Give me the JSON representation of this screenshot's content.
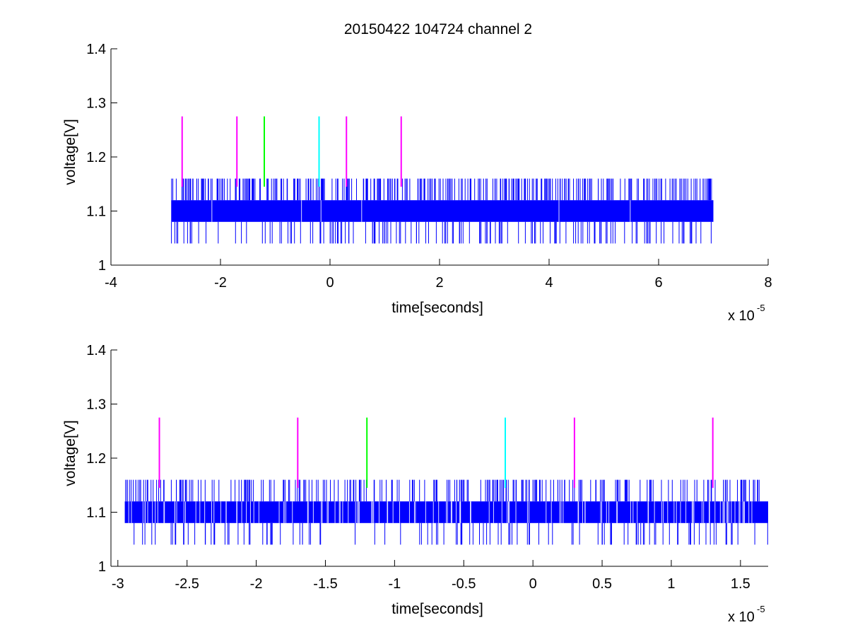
{
  "figure": {
    "title": "20150422 104724 channel 2",
    "background": "#ffffff",
    "trace_color": "#0000ff",
    "marker_colors": {
      "magenta": "#ff00ff",
      "green": "#00ff00",
      "cyan": "#00ffff"
    }
  },
  "chart_data": [
    {
      "type": "line",
      "title": "20150422 104724 channel 2",
      "xlabel": "time[seconds]",
      "ylabel": "voltage[V]",
      "x_scale_label": "x 10",
      "x_scale_exponent": "-5",
      "xlim": [
        -4,
        8
      ],
      "ylim": [
        1,
        1.4
      ],
      "xticks": [
        "-4",
        "-2",
        "0",
        "2",
        "4",
        "6",
        "8"
      ],
      "yticks": [
        "1",
        "1.1",
        "1.2",
        "1.3",
        "1.4"
      ],
      "grid": false,
      "series": [
        {
          "style": "dense-noise",
          "x_range": [
            -2.9,
            7.0
          ],
          "band": [
            1.08,
            1.12
          ],
          "spike_up": 1.16,
          "spike_down": 1.04,
          "color": "#0000ff"
        }
      ],
      "markers": [
        {
          "x": -2.7,
          "y_range": [
            1.145,
            1.275
          ],
          "color": "magenta"
        },
        {
          "x": -1.7,
          "y_range": [
            1.145,
            1.275
          ],
          "color": "magenta"
        },
        {
          "x": -1.2,
          "y_range": [
            1.145,
            1.275
          ],
          "color": "green"
        },
        {
          "x": -0.2,
          "y_range": [
            1.145,
            1.275
          ],
          "color": "cyan"
        },
        {
          "x": 0.3,
          "y_range": [
            1.145,
            1.275
          ],
          "color": "magenta"
        },
        {
          "x": 1.3,
          "y_range": [
            1.145,
            1.275
          ],
          "color": "magenta"
        }
      ]
    },
    {
      "type": "line",
      "title": "",
      "xlabel": "time[seconds]",
      "ylabel": "voltage[V]",
      "x_scale_label": "x 10",
      "x_scale_exponent": "-5",
      "xlim": [
        -3.05,
        1.7
      ],
      "ylim": [
        1,
        1.4
      ],
      "xticks": [
        "-3",
        "-2.5",
        "-2",
        "-1.5",
        "-1",
        "-0.5",
        "0",
        "0.5",
        "1",
        "1.5"
      ],
      "yticks": [
        "1",
        "1.1",
        "1.2",
        "1.3",
        "1.4"
      ],
      "grid": false,
      "series": [
        {
          "style": "dense-noise",
          "x_range": [
            -2.95,
            1.7
          ],
          "band": [
            1.08,
            1.12
          ],
          "spike_up": 1.16,
          "spike_down": 1.04,
          "color": "#0000ff"
        }
      ],
      "markers": [
        {
          "x": -2.7,
          "y_range": [
            1.145,
            1.275
          ],
          "color": "magenta"
        },
        {
          "x": -1.7,
          "y_range": [
            1.145,
            1.275
          ],
          "color": "magenta"
        },
        {
          "x": -1.2,
          "y_range": [
            1.145,
            1.275
          ],
          "color": "green"
        },
        {
          "x": -0.2,
          "y_range": [
            1.145,
            1.275
          ],
          "color": "cyan"
        },
        {
          "x": 0.3,
          "y_range": [
            1.145,
            1.275
          ],
          "color": "magenta"
        },
        {
          "x": 1.3,
          "y_range": [
            1.145,
            1.275
          ],
          "color": "magenta"
        }
      ]
    }
  ]
}
